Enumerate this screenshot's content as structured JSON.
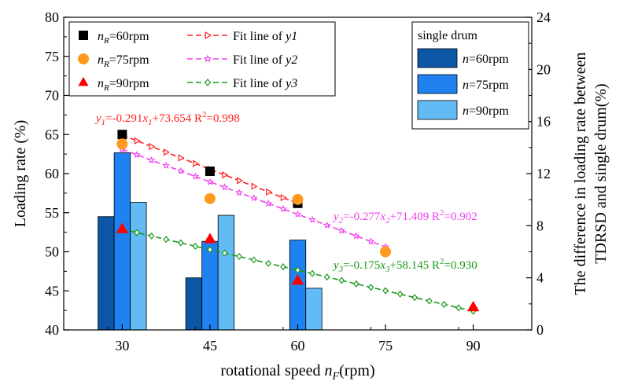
{
  "chart_data": {
    "type": "bar+scatter+line",
    "xlabel": "rotational speed n_F(rpm)",
    "xlabel_main": "rotational speed ",
    "xlabel_var": "n",
    "xlabel_sub": "F",
    "xlabel_unit": "(rpm)",
    "ylabel_left": "Loading rate (%)",
    "ylabel_right_line1": "The difference in loading rate between",
    "ylabel_right_line2": "TDRSD and single drum(%)",
    "xlim": [
      20,
      100
    ],
    "ylim_left": [
      40,
      80
    ],
    "ylim_right": [
      0,
      24
    ],
    "xticks": [
      30,
      45,
      60,
      75,
      90
    ],
    "xtick_labels": [
      "30",
      "45",
      "60",
      "75",
      "90"
    ],
    "yticks_left": [
      40,
      45,
      50,
      55,
      60,
      65,
      70,
      75,
      80
    ],
    "yticks_left_labels": [
      "40",
      "45",
      "50",
      "55",
      "60",
      "65",
      "70",
      "75",
      "80"
    ],
    "yticks_right": [
      0,
      4,
      8,
      12,
      16,
      20,
      24
    ],
    "yticks_right_labels": [
      "0",
      "4",
      "8",
      "12",
      "16",
      "20",
      "24"
    ],
    "bars": {
      "axis": "right",
      "legend_title": "single drum",
      "categories": [
        30,
        45,
        60
      ],
      "series": [
        {
          "name": "n=60rpm",
          "var": "n",
          "rest": "=60rpm",
          "color": "#0d56a6",
          "values": [
            8.7,
            4.0
          ]
        },
        {
          "name": "n=75rpm",
          "var": "n",
          "rest": "=75rpm",
          "color": "#1f82f0",
          "values": [
            13.6,
            6.8,
            6.9
          ]
        },
        {
          "name": "n=90rpm",
          "var": "n",
          "rest": "=90rpm",
          "color": "#63bbf5",
          "values": [
            9.8,
            8.8,
            3.2
          ]
        }
      ]
    },
    "scatter": [
      {
        "name": "n_R=60rpm",
        "var": "n",
        "sub": "R",
        "rest": "=60rpm",
        "marker": "square",
        "color": "#000000",
        "x": [
          30,
          45,
          60
        ],
        "y": [
          65.0,
          60.3,
          56.2
        ]
      },
      {
        "name": "n_R=75rpm",
        "var": "n",
        "sub": "R",
        "rest": "=75rpm",
        "marker": "circle",
        "color": "#ff9a1f",
        "x": [
          30,
          45,
          60,
          75
        ],
        "y": [
          63.8,
          56.8,
          56.7,
          50.0
        ]
      },
      {
        "name": "n_R=90rpm",
        "var": "n",
        "sub": "R",
        "rest": "=90rpm",
        "marker": "triangle",
        "color": "#ff0000",
        "x": [
          30,
          45,
          60,
          90
        ],
        "y": [
          52.9,
          51.6,
          46.3,
          42.9
        ]
      }
    ],
    "fits": [
      {
        "name": "Fit line of y1",
        "prefix": "Fit line of ",
        "var": "y1",
        "color": "#ff2020",
        "marker": "tri-right",
        "x_start": 30,
        "x_end": 60,
        "slope": -0.291,
        "intercept": 73.654,
        "equation_var": "y",
        "equation_sub": "1",
        "equation_mid": "=-0.291",
        "equation_x": "x",
        "equation_xsub": "1",
        "equation_tail": "+73.654  R",
        "equation_pow": "2",
        "equation_r2": "=0.998"
      },
      {
        "name": "Fit line of y2",
        "prefix": "Fit line of ",
        "var": "y2",
        "color": "#f040f0",
        "marker": "star",
        "x_start": 30,
        "x_end": 75,
        "slope": -0.277,
        "intercept": 71.409,
        "equation_var": "y",
        "equation_sub": "2",
        "equation_mid": "=-0.277",
        "equation_x": "x",
        "equation_xsub": "2",
        "equation_tail": "+71.409  R",
        "equation_pow": "2",
        "equation_r2": "=0.902"
      },
      {
        "name": "Fit line of y3",
        "prefix": "Fit line of ",
        "var": "y3",
        "color": "#1a9a1a",
        "marker": "diamond",
        "x_start": 30,
        "x_end": 90,
        "slope": -0.175,
        "intercept": 58.145,
        "equation_var": "y",
        "equation_sub": "3",
        "equation_mid": "=-0.175",
        "equation_x": "x",
        "equation_xsub": "3",
        "equation_tail": "+58.145  R",
        "equation_pow": "2",
        "equation_r2": "=0.930"
      }
    ]
  }
}
